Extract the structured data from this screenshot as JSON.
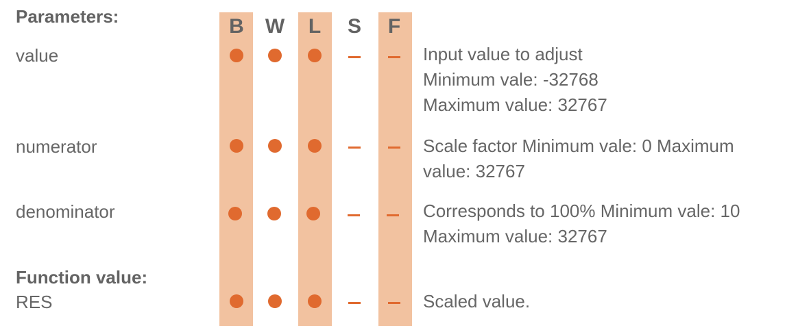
{
  "headings": {
    "parameters": "Parameters:",
    "function_value": "Function value:"
  },
  "columns": [
    "B",
    "W",
    "L",
    "S",
    "F"
  ],
  "colors": {
    "column_highlight": "#f2c2a0",
    "marker": "#e06a2f",
    "text": "#666666"
  },
  "supported_marker": "dot",
  "unsupported_marker": "dash",
  "column_support": [
    "dot",
    "dot",
    "dot",
    "dash",
    "dash"
  ],
  "rows": [
    {
      "name": "value",
      "description_lines": [
        "Input value to adjust",
        "Minimum vale: -32768",
        "Maximum value: 32767"
      ]
    },
    {
      "name": "numerator",
      "description_lines": [
        "Scale factor Minimum vale: 0 Maximum",
        "value: 32767"
      ]
    },
    {
      "name": "denominator",
      "description_lines": [
        "Corresponds to 100% Minimum vale: 10",
        "Maximum value: 32767"
      ]
    },
    {
      "name": "RES",
      "description_lines": [
        "Scaled value."
      ]
    }
  ]
}
